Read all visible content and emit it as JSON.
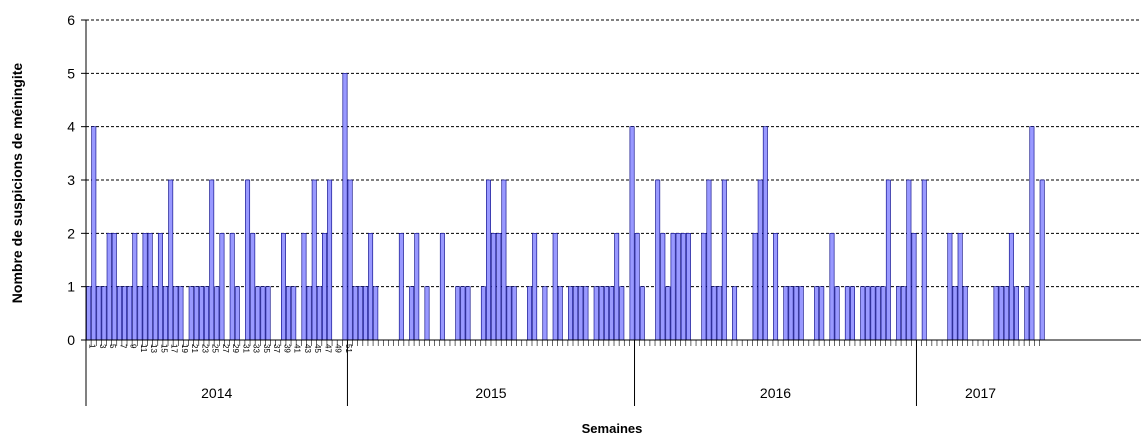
{
  "chart_data": {
    "type": "bar",
    "title": "",
    "xlabel": "Semaines",
    "ylabel": "Nombre de suspicions de méningite",
    "ylim": [
      0,
      6
    ],
    "yticks": [
      "0",
      "1",
      "2",
      "3",
      "4",
      "5",
      "6"
    ],
    "grid": "horizontal dashed",
    "bar_color": "#9999ff",
    "bar_edge_color": "#000080",
    "years": [
      {
        "label": "2014",
        "values": [
          1,
          4,
          1,
          1,
          2,
          2,
          1,
          1,
          1,
          2,
          1,
          2,
          2,
          1,
          2,
          1,
          3,
          1,
          1,
          0,
          1,
          1,
          1,
          1,
          3,
          1,
          2,
          0,
          2,
          1,
          0,
          3,
          2,
          1,
          1,
          1,
          0,
          0,
          2,
          1,
          1,
          0,
          2,
          1,
          3,
          1,
          2,
          3,
          0,
          0,
          5
        ]
      },
      {
        "label": "2015",
        "values": [
          3,
          1,
          1,
          1,
          2,
          1,
          0,
          0,
          0,
          0,
          2,
          0,
          1,
          2,
          0,
          1,
          0,
          0,
          2,
          0,
          0,
          1,
          1,
          1,
          0,
          0,
          1,
          3,
          2,
          2,
          3,
          1,
          1,
          0,
          0,
          1,
          2,
          0,
          1,
          0,
          2,
          1,
          0,
          1,
          1,
          1,
          1,
          0,
          1,
          1,
          1,
          1,
          2,
          1,
          0,
          4
        ]
      },
      {
        "label": "2016",
        "values": [
          2,
          1,
          0,
          0,
          3,
          2,
          1,
          2,
          2,
          2,
          2,
          0,
          0,
          2,
          3,
          1,
          1,
          3,
          0,
          1,
          0,
          0,
          0,
          2,
          3,
          4,
          0,
          2,
          0,
          1,
          1,
          1,
          1,
          0,
          0,
          1,
          1,
          0,
          2,
          1,
          0,
          1,
          1,
          0,
          1,
          1,
          1,
          1,
          1,
          3,
          0,
          1,
          1,
          3,
          2
        ]
      },
      {
        "label": "2017",
        "values": [
          0,
          3,
          0,
          0,
          0,
          0,
          2,
          1,
          2,
          1,
          0,
          0,
          0,
          0,
          0,
          1,
          1,
          1,
          2,
          1,
          0,
          1,
          4,
          0,
          3
        ]
      }
    ],
    "week_tick_labels_2014": [
      "1",
      "3",
      "5",
      "7",
      "9",
      "11",
      "13",
      "15",
      "17",
      "19",
      "21",
      "23",
      "25",
      "27",
      "29",
      "31",
      "33",
      "35",
      "37",
      "39",
      "41",
      "43",
      "45",
      "47",
      "49",
      "51"
    ]
  }
}
